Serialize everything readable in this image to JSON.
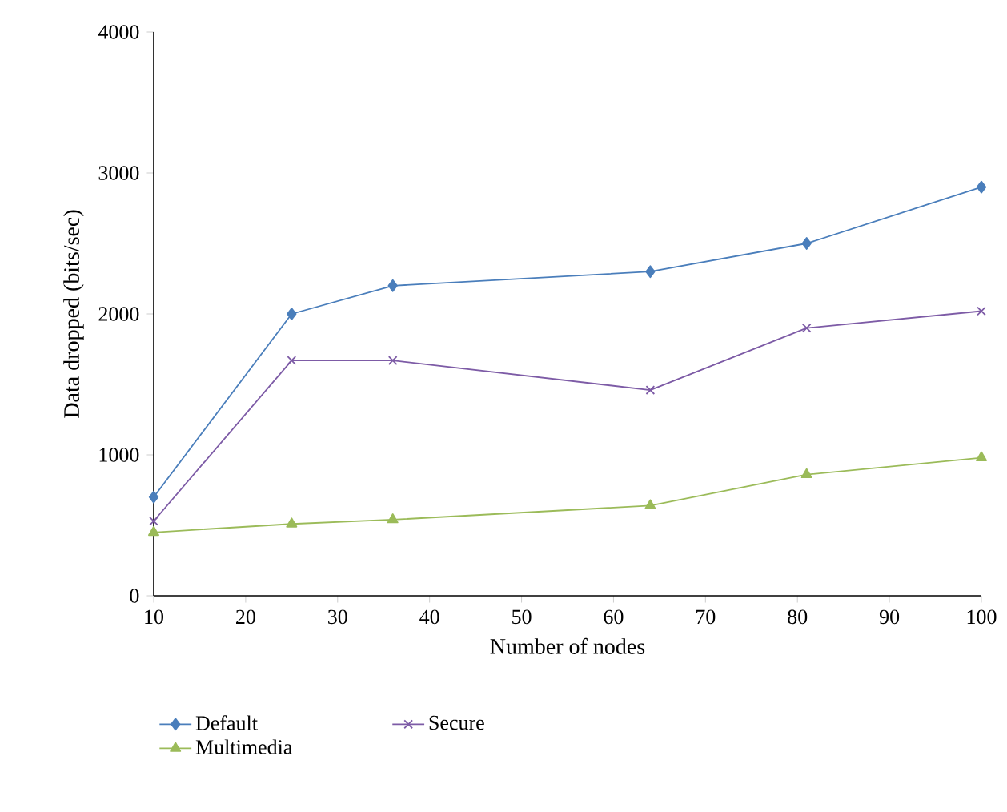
{
  "chart_data": {
    "type": "line",
    "xlabel": "Number of nodes",
    "ylabel": "Data dropped (bits/sec)",
    "x": [
      10,
      25,
      36,
      64,
      81,
      100
    ],
    "series": [
      {
        "name": "Default",
        "color": "#4a7ebb",
        "marker": "diamond",
        "values": [
          700,
          2000,
          2200,
          2300,
          2500,
          2900
        ]
      },
      {
        "name": "Secure",
        "color": "#7d5ba6",
        "marker": "cross",
        "values": [
          530,
          1670,
          1670,
          1460,
          1900,
          2020
        ]
      },
      {
        "name": "Multimedia",
        "color": "#9bbb59",
        "marker": "triangle",
        "values": [
          450,
          510,
          540,
          640,
          860,
          980
        ]
      }
    ],
    "xlim": [
      10,
      100
    ],
    "xticks": [
      10,
      20,
      30,
      40,
      50,
      60,
      70,
      80,
      90,
      100
    ],
    "ylim": [
      0,
      4000
    ],
    "yticks": [
      0,
      1000,
      2000,
      3000,
      4000
    ],
    "grid": false,
    "legend": "bottom",
    "line_style": "solid"
  }
}
